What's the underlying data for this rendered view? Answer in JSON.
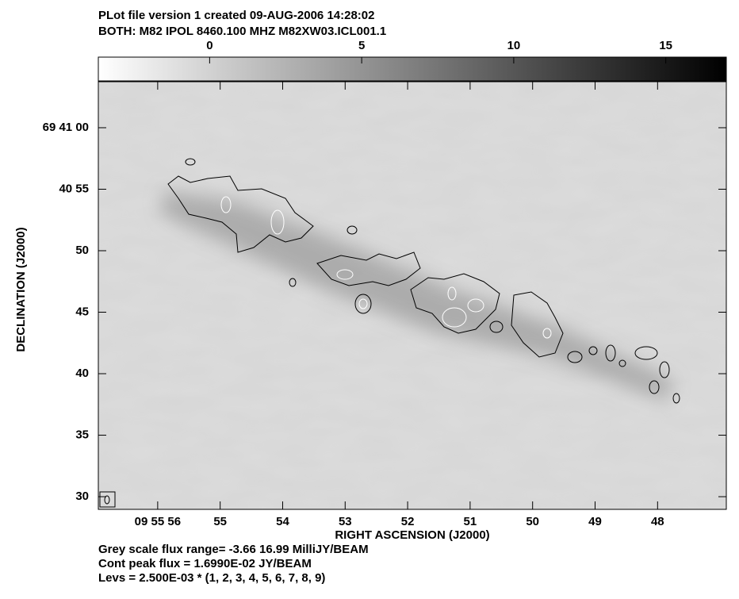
{
  "chart_data": {
    "type": "contour-image",
    "title": "PLot file version 1  created 09-AUG-2006 14:28:02",
    "subtitle": "BOTH: M82  IPOL  8460.100 MHZ  M82XW03.ICL001.1",
    "xlabel": "RIGHT ASCENSION (J2000)",
    "ylabel": "DECLINATION (J2000)",
    "xlim": [
      56.95,
      46.9
    ],
    "xticks": [
      {
        "value": 56,
        "label": "09 55 56"
      },
      55,
      54,
      53,
      52,
      51,
      50,
      49,
      48
    ],
    "ylim": [
      28.97,
      63.74
    ],
    "yticks": [
      {
        "value": 60,
        "label": "69 41 00"
      },
      {
        "value": 55,
        "label": "40 55"
      },
      50,
      45,
      40,
      35,
      30
    ],
    "colorbar": {
      "lim": [
        -3.66,
        16.99
      ],
      "ticks": [
        0,
        5,
        10,
        15
      ]
    },
    "notes": [
      "Grey scale flux range= -3.66 16.99 MilliJY/BEAM",
      "Cont peak flux =  1.6990E-02 JY/BEAM",
      "Levs = 2.500E-03 * (1, 2, 3, 4, 5, 6, 7, 8, 9)"
    ]
  }
}
